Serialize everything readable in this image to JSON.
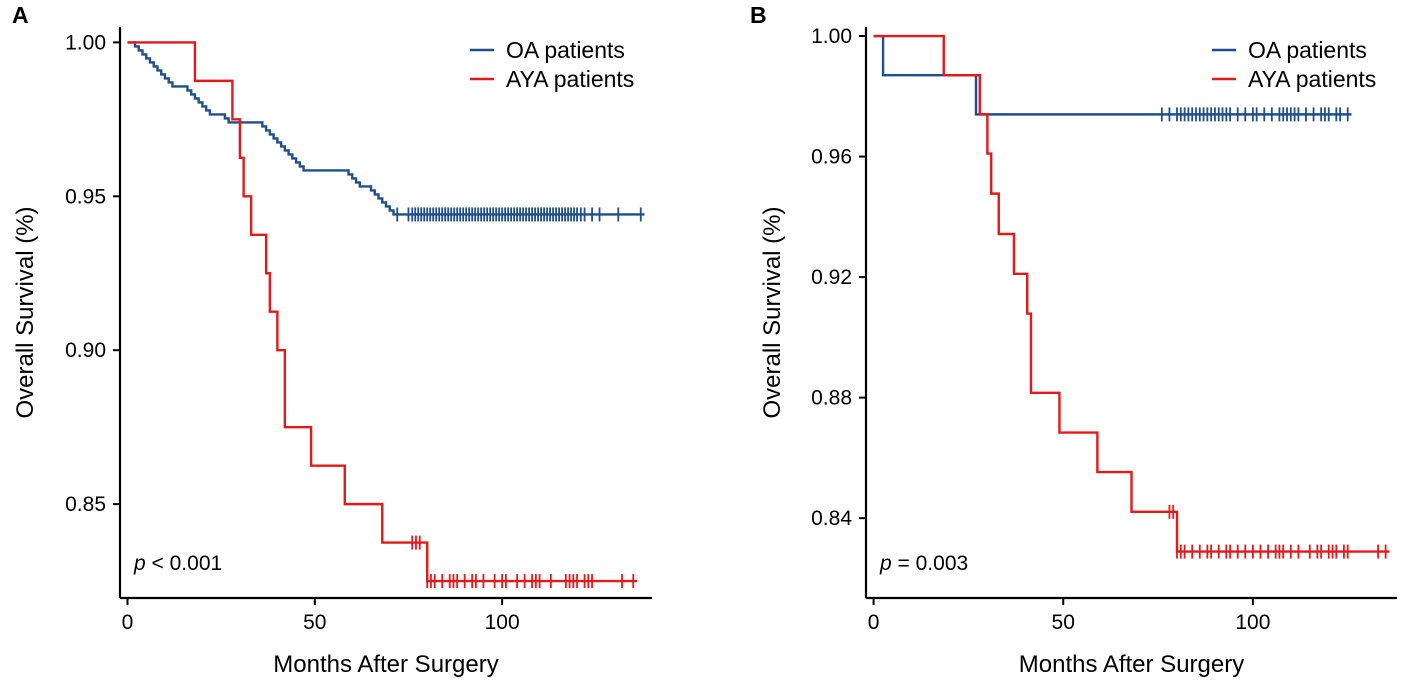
{
  "figure": {
    "panels": [
      "A",
      "B"
    ]
  },
  "chart_data": [
    {
      "type": "line",
      "subtype": "kaplan-meier",
      "panel_label": "A",
      "xlabel": "Months After Surgery",
      "ylabel": "Overall Survival (%)",
      "xlim": [
        -2,
        140
      ],
      "ylim": [
        0.8195,
        1.005
      ],
      "xticks": [
        0,
        50,
        100
      ],
      "xtick_labels": [
        "0",
        "50",
        "100"
      ],
      "yticks": [
        0.85,
        0.9,
        0.95,
        1.0
      ],
      "ytick_labels": [
        "0.85",
        "0.90",
        "0.95",
        "1.00"
      ],
      "annotation": {
        "italic": "p",
        "text": " < 0.001"
      },
      "legend_position": "top-right",
      "series": [
        {
          "name": "OA patients",
          "color": "#1f4e8c",
          "steps": [
            [
              0,
              1.0
            ],
            [
              2,
              0.9987
            ],
            [
              3,
              0.9974
            ],
            [
              4,
              0.9961
            ],
            [
              5,
              0.9948
            ],
            [
              6,
              0.9935
            ],
            [
              7,
              0.9922
            ],
            [
              8,
              0.9909
            ],
            [
              9,
              0.9896
            ],
            [
              10,
              0.9883
            ],
            [
              11,
              0.987
            ],
            [
              12,
              0.9857
            ],
            [
              16,
              0.9844
            ],
            [
              17,
              0.9831
            ],
            [
              18,
              0.9818
            ],
            [
              19,
              0.9805
            ],
            [
              20,
              0.9792
            ],
            [
              21,
              0.9779
            ],
            [
              22,
              0.9766
            ],
            [
              26,
              0.9753
            ],
            [
              27,
              0.974
            ],
            [
              36,
              0.9727
            ],
            [
              37,
              0.9714
            ],
            [
              38,
              0.9701
            ],
            [
              39,
              0.9688
            ],
            [
              40,
              0.9675
            ],
            [
              41,
              0.9662
            ],
            [
              42,
              0.9649
            ],
            [
              43,
              0.9636
            ],
            [
              44,
              0.9623
            ],
            [
              45,
              0.961
            ],
            [
              46,
              0.9597
            ],
            [
              47,
              0.9584
            ],
            [
              59,
              0.9571
            ],
            [
              60,
              0.9558
            ],
            [
              61,
              0.9545
            ],
            [
              62,
              0.9532
            ],
            [
              65,
              0.9519
            ],
            [
              66,
              0.9506
            ],
            [
              67,
              0.9493
            ],
            [
              68,
              0.948
            ],
            [
              69,
              0.9467
            ],
            [
              70,
              0.9454
            ],
            [
              71,
              0.9441
            ]
          ],
          "end_x": 138,
          "censor_x": [
            72,
            75,
            76,
            76.8,
            77.6,
            78.4,
            79.2,
            80,
            80.8,
            81.6,
            82.4,
            83.2,
            84,
            84.8,
            85.6,
            86.4,
            87.2,
            88,
            88.8,
            89.6,
            90.4,
            91.2,
            92,
            92.8,
            93.6,
            94.4,
            95.2,
            96,
            96.8,
            97.6,
            98.4,
            99.2,
            100,
            100.8,
            101.6,
            102.4,
            103.2,
            104,
            104.8,
            105.6,
            106.4,
            107.2,
            108,
            108.8,
            109.6,
            110.4,
            111.2,
            112,
            112.8,
            113.6,
            114.4,
            115.2,
            116,
            116.8,
            117.6,
            118.4,
            119.2,
            120,
            121,
            122,
            124,
            126,
            131,
            137
          ]
        },
        {
          "name": "AYA patients",
          "color": "#e31a1c",
          "steps": [
            [
              0,
              1.0
            ],
            [
              18,
              0.9875
            ],
            [
              28,
              0.975
            ],
            [
              30,
              0.9625
            ],
            [
              31,
              0.95
            ],
            [
              33,
              0.9375
            ],
            [
              37,
              0.925
            ],
            [
              38,
              0.9125
            ],
            [
              40,
              0.9
            ],
            [
              42,
              0.875
            ],
            [
              49,
              0.8625
            ],
            [
              58,
              0.85
            ],
            [
              68,
              0.8375
            ],
            [
              80,
              0.825
            ]
          ],
          "end_x": 136,
          "censor_x": [
            76,
            77,
            78,
            80,
            81,
            82,
            84,
            86,
            87,
            88,
            90,
            92,
            93,
            95,
            98,
            100,
            101,
            104,
            106,
            108,
            109,
            110,
            113,
            117,
            118,
            119,
            120,
            122,
            123,
            124,
            132,
            135
          ]
        }
      ]
    },
    {
      "type": "line",
      "subtype": "kaplan-meier",
      "panel_label": "B",
      "xlabel": "Months After Surgery",
      "ylabel": "Overall Survival (%)",
      "xlim": [
        -2,
        138
      ],
      "ylim": [
        0.8135,
        1.003
      ],
      "xticks": [
        0,
        50,
        100
      ],
      "xtick_labels": [
        "0",
        "50",
        "100"
      ],
      "yticks": [
        0.84,
        0.88,
        0.92,
        0.96,
        1.0
      ],
      "ytick_labels": [
        "0.84",
        "0.88",
        "0.92",
        "0.96",
        "1.00"
      ],
      "annotation": {
        "italic": "p",
        "text": " = 0.003"
      },
      "legend_position": "top-right",
      "series": [
        {
          "name": "OA patients",
          "color": "#1f4e8c",
          "steps": [
            [
              0,
              1.0
            ],
            [
              2.5,
              0.987
            ],
            [
              27,
              0.974
            ]
          ],
          "end_x": 126,
          "censor_x": [
            76,
            78,
            80,
            81,
            82,
            83,
            84,
            85,
            86,
            87,
            88,
            89,
            90,
            91,
            92,
            93,
            94,
            96,
            98,
            100,
            101,
            103,
            105,
            107,
            108,
            109,
            110,
            111,
            112,
            114,
            116,
            118,
            119,
            120,
            122,
            123,
            125
          ]
        },
        {
          "name": "AYA patients",
          "color": "#e31a1c",
          "steps": [
            [
              0,
              1.0
            ],
            [
              18.5,
              0.987
            ],
            [
              28,
              0.974
            ],
            [
              30,
              0.961
            ],
            [
              31,
              0.9477
            ],
            [
              33,
              0.9343
            ],
            [
              37,
              0.9211
            ],
            [
              40.5,
              0.9079
            ],
            [
              41.5,
              0.8816
            ],
            [
              49,
              0.8684
            ],
            [
              59,
              0.8553
            ],
            [
              68,
              0.8421
            ],
            [
              80,
              0.8289
            ]
          ],
          "end_x": 136,
          "censor_x": [
            78,
            79,
            80,
            81,
            82,
            84,
            86,
            88,
            89,
            91,
            93,
            94,
            96,
            98,
            100,
            102,
            104,
            106,
            107,
            108,
            110,
            112,
            115,
            117,
            118,
            120,
            121,
            122,
            124,
            125,
            133,
            135
          ]
        }
      ]
    }
  ]
}
